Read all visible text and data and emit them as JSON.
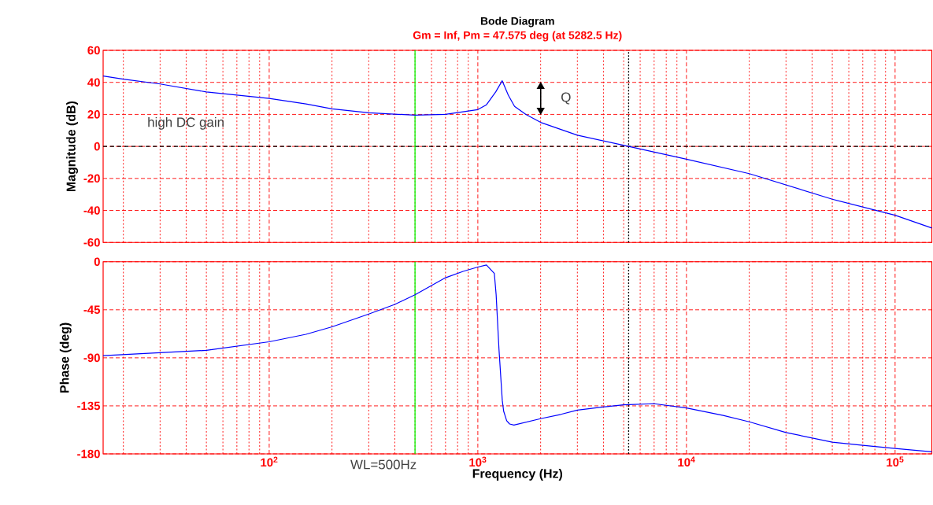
{
  "chart_data": [
    {
      "type": "line",
      "title": "Bode Diagram",
      "subtitle": "Gm = Inf, Pm = 47.575 deg (at 5282.5 Hz)",
      "ylabel": "Magnitude (dB)",
      "x": [
        16,
        20,
        30,
        50,
        100,
        150,
        200,
        300,
        500,
        700,
        1000,
        1100,
        1218,
        1309,
        1400,
        1500,
        1700,
        2000,
        3000,
        5282.5,
        10000,
        20000,
        50000,
        100000,
        150000
      ],
      "values": [
        44,
        42,
        39,
        34,
        30,
        26.5,
        23.5,
        21,
        19.5,
        20,
        23,
        26,
        34,
        41,
        32,
        25,
        20,
        15,
        7,
        0,
        -8,
        -17,
        -33,
        -43,
        -51
      ],
      "color": "#0000ff",
      "log": "x",
      "grid": true,
      "tick_labels": "y",
      "xlim": [
        16,
        150000
      ],
      "ylim": [
        -60,
        60
      ],
      "xticks": [
        {
          "value": 100,
          "label": null
        },
        {
          "value": 1000,
          "label": null
        },
        {
          "value": 10000,
          "label": null
        },
        {
          "value": 100000,
          "label": null
        }
      ],
      "yticks": [
        -60,
        -40,
        -20,
        0,
        20,
        40,
        60
      ],
      "ref_lines": [
        {
          "axis": "y",
          "value": 0,
          "color": "#000000",
          "line_style": "dashed"
        },
        {
          "axis": "x",
          "value": 500,
          "color": "#00ff00",
          "line_style": "solid"
        },
        {
          "axis": "x",
          "value": 5282.5,
          "color": "#000000",
          "line_style": "dotted"
        }
      ],
      "annotations": [
        "high DC gain",
        "Q"
      ]
    },
    {
      "type": "line",
      "xlabel": "Frequency (Hz)",
      "ylabel": "Phase (deg)",
      "x": [
        16,
        50,
        100,
        150,
        200,
        300,
        400,
        500,
        700,
        850,
        1000,
        1100,
        1200,
        1224,
        1263,
        1310,
        1330,
        1375,
        1420,
        1490,
        2000,
        2500,
        3000,
        4000,
        5000,
        7000,
        10000,
        15000,
        20000,
        30000,
        50000,
        70000,
        100000,
        150000
      ],
      "values": [
        -88,
        -83,
        -75,
        -68,
        -61,
        -49,
        -40,
        -31,
        -15,
        -9,
        -5,
        -3,
        -11,
        -31,
        -82,
        -130,
        -140,
        -149,
        -152,
        -153,
        -147,
        -143,
        -139,
        -136,
        -134,
        -133,
        -137,
        -144,
        -150,
        -160,
        -169,
        -172,
        -175,
        -178
      ],
      "color": "#0000ff",
      "log": "x",
      "grid": true,
      "xlim": [
        16,
        150000
      ],
      "ylim": [
        -180,
        0
      ],
      "xticks": [
        {
          "value": 100,
          "label": "10$^{2}$"
        },
        {
          "value": 1000,
          "label": "10$^{3}$"
        },
        {
          "value": 10000,
          "label": "10$^{4}$"
        },
        {
          "value": 100000,
          "label": "10$^{5}$"
        }
      ],
      "yticks": [
        -180,
        -135,
        -90,
        -45,
        0
      ],
      "ref_lines": [
        {
          "axis": "x",
          "value": 500,
          "color": "#00ff00",
          "line_style": "solid",
          "label": "WL=500Hz"
        },
        {
          "axis": "x",
          "value": 5282.5,
          "color": "#000000",
          "line_style": "dotted"
        }
      ]
    }
  ]
}
